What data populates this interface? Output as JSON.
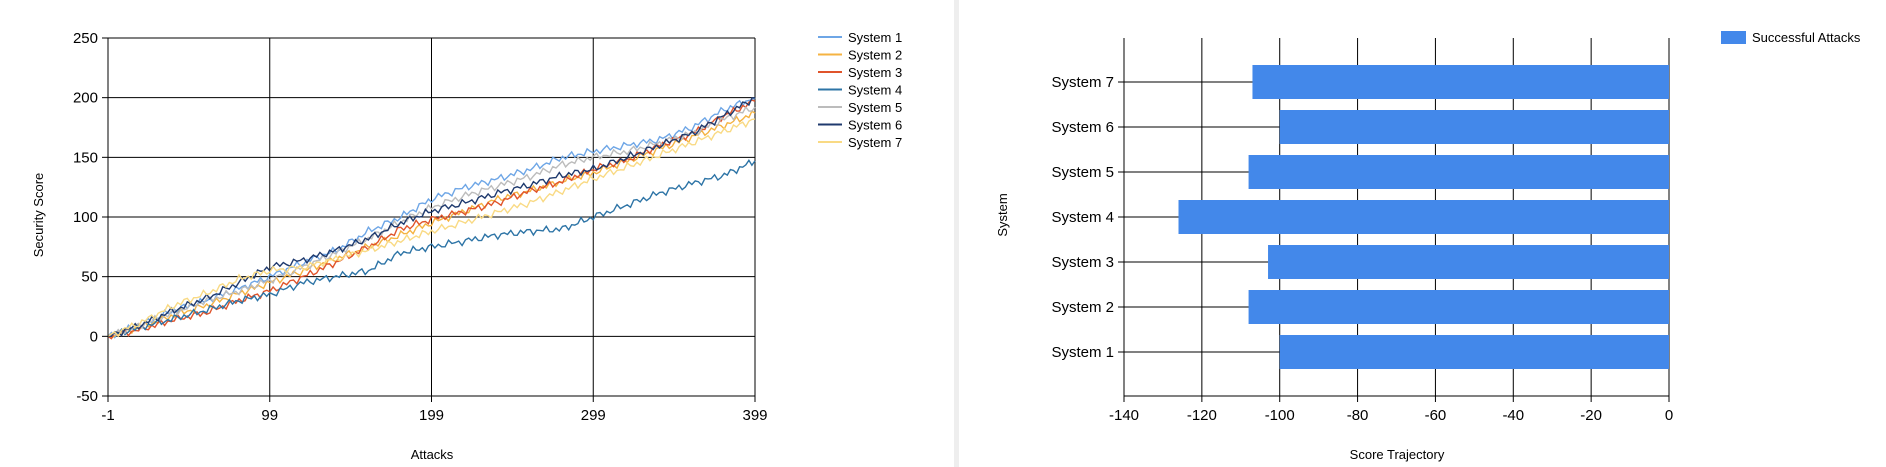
{
  "chart_data": [
    {
      "type": "line",
      "title": "",
      "xlabel": "Attacks",
      "ylabel": "Security Score",
      "xlim": [
        -1,
        399
      ],
      "ylim": [
        -50,
        250
      ],
      "xticks": [
        -1,
        99,
        199,
        299,
        399
      ],
      "yticks": [
        -50,
        0,
        50,
        100,
        150,
        200,
        250
      ],
      "grid": true,
      "legend_position": "top-right",
      "series": [
        {
          "name": "System 1",
          "color": "#6ea6e6",
          "points": [
            [
              -1,
              0
            ],
            [
              20,
              10
            ],
            [
              40,
              22
            ],
            [
              60,
              30
            ],
            [
              80,
              40
            ],
            [
              99,
              50
            ],
            [
              120,
              62
            ],
            [
              140,
              72
            ],
            [
              160,
              88
            ],
            [
              180,
              100
            ],
            [
              199,
              115
            ],
            [
              220,
              125
            ],
            [
              240,
              132
            ],
            [
              260,
              140
            ],
            [
              280,
              150
            ],
            [
              299,
              155
            ],
            [
              320,
              160
            ],
            [
              340,
              165
            ],
            [
              360,
              175
            ],
            [
              380,
              190
            ],
            [
              399,
              200
            ]
          ]
        },
        {
          "name": "System 2",
          "color": "#f5b342",
          "points": [
            [
              -1,
              0
            ],
            [
              20,
              8
            ],
            [
              40,
              18
            ],
            [
              60,
              26
            ],
            [
              80,
              36
            ],
            [
              99,
              45
            ],
            [
              120,
              55
            ],
            [
              140,
              65
            ],
            [
              160,
              75
            ],
            [
              180,
              85
            ],
            [
              199,
              95
            ],
            [
              220,
              105
            ],
            [
              240,
              115
            ],
            [
              260,
              122
            ],
            [
              280,
              130
            ],
            [
              299,
              137
            ],
            [
              320,
              147
            ],
            [
              340,
              157
            ],
            [
              360,
              167
            ],
            [
              380,
              177
            ],
            [
              399,
              187
            ]
          ]
        },
        {
          "name": "System 3",
          "color": "#e0542b",
          "points": [
            [
              -1,
              0
            ],
            [
              20,
              6
            ],
            [
              40,
              14
            ],
            [
              60,
              20
            ],
            [
              80,
              30
            ],
            [
              99,
              38
            ],
            [
              120,
              50
            ],
            [
              140,
              62
            ],
            [
              160,
              75
            ],
            [
              180,
              90
            ],
            [
              199,
              98
            ],
            [
              220,
              105
            ],
            [
              240,
              112
            ],
            [
              260,
              122
            ],
            [
              280,
              130
            ],
            [
              299,
              140
            ],
            [
              320,
              148
            ],
            [
              340,
              160
            ],
            [
              360,
              170
            ],
            [
              380,
              185
            ],
            [
              399,
              197
            ]
          ]
        },
        {
          "name": "System 4",
          "color": "#2d74a6",
          "points": [
            [
              -1,
              0
            ],
            [
              20,
              8
            ],
            [
              40,
              15
            ],
            [
              60,
              22
            ],
            [
              80,
              30
            ],
            [
              99,
              35
            ],
            [
              120,
              45
            ],
            [
              140,
              50
            ],
            [
              160,
              55
            ],
            [
              180,
              70
            ],
            [
              199,
              75
            ],
            [
              220,
              80
            ],
            [
              240,
              85
            ],
            [
              260,
              88
            ],
            [
              280,
              90
            ],
            [
              299,
              100
            ],
            [
              320,
              110
            ],
            [
              340,
              120
            ],
            [
              360,
              128
            ],
            [
              380,
              135
            ],
            [
              399,
              147
            ]
          ]
        },
        {
          "name": "System 5",
          "color": "#bcbcbc",
          "points": [
            [
              -1,
              0
            ],
            [
              20,
              10
            ],
            [
              40,
              20
            ],
            [
              60,
              30
            ],
            [
              80,
              38
            ],
            [
              99,
              47
            ],
            [
              120,
              58
            ],
            [
              140,
              70
            ],
            [
              160,
              82
            ],
            [
              180,
              96
            ],
            [
              199,
              108
            ],
            [
              220,
              118
            ],
            [
              240,
              126
            ],
            [
              260,
              134
            ],
            [
              280,
              144
            ],
            [
              299,
              150
            ],
            [
              320,
              155
            ],
            [
              340,
              162
            ],
            [
              360,
              170
            ],
            [
              380,
              182
            ],
            [
              399,
              192
            ]
          ]
        },
        {
          "name": "System 6",
          "color": "#1f3a6e",
          "points": [
            [
              -1,
              0
            ],
            [
              20,
              10
            ],
            [
              40,
              22
            ],
            [
              60,
              32
            ],
            [
              80,
              45
            ],
            [
              99,
              58
            ],
            [
              120,
              64
            ],
            [
              140,
              72
            ],
            [
              160,
              82
            ],
            [
              180,
              95
            ],
            [
              199,
              105
            ],
            [
              220,
              112
            ],
            [
              240,
              120
            ],
            [
              260,
              127
            ],
            [
              280,
              135
            ],
            [
              299,
              140
            ],
            [
              320,
              150
            ],
            [
              340,
              160
            ],
            [
              360,
              170
            ],
            [
              380,
              185
            ],
            [
              399,
              200
            ]
          ]
        },
        {
          "name": "System 7",
          "color": "#f9da84",
          "points": [
            [
              -1,
              0
            ],
            [
              20,
              12
            ],
            [
              40,
              26
            ],
            [
              60,
              36
            ],
            [
              80,
              48
            ],
            [
              99,
              55
            ],
            [
              120,
              58
            ],
            [
              140,
              65
            ],
            [
              160,
              72
            ],
            [
              180,
              80
            ],
            [
              199,
              88
            ],
            [
              220,
              96
            ],
            [
              240,
              104
            ],
            [
              260,
              112
            ],
            [
              280,
              122
            ],
            [
              299,
              132
            ],
            [
              320,
              142
            ],
            [
              340,
              152
            ],
            [
              360,
              162
            ],
            [
              380,
              172
            ],
            [
              399,
              182
            ]
          ]
        }
      ]
    },
    {
      "type": "bar",
      "orientation": "horizontal",
      "title": "",
      "xlabel": "Score Trajectory",
      "ylabel": "System",
      "xlim": [
        -140,
        0
      ],
      "xticks": [
        -140,
        -120,
        -100,
        -80,
        -60,
        -40,
        -20,
        0
      ],
      "grid": true,
      "legend_position": "top-right",
      "categories": [
        "System 1",
        "System 2",
        "System 3",
        "System 4",
        "System 5",
        "System 6",
        "System 7"
      ],
      "series": [
        {
          "name": "Successful Attacks",
          "color": "#4388ea",
          "values": [
            -100,
            -108,
            -103,
            -126,
            -108,
            -100,
            -107
          ]
        }
      ]
    }
  ]
}
